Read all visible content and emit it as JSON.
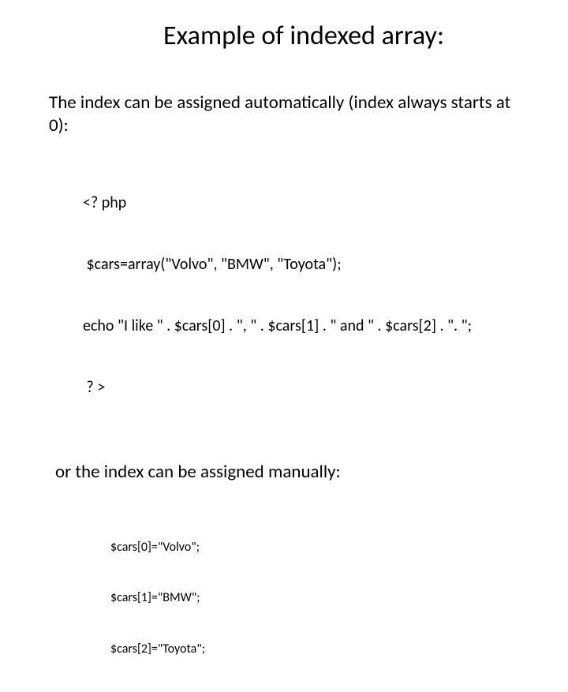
{
  "slide": {
    "title": "Example of indexed array:",
    "intro_text": "The index can be assigned automatically (index always starts at 0):",
    "code_line1": "<? php",
    "code_line2": " $cars=array(\"Volvo\", \"BMW\", \"Toyota\");",
    "code_line3": "echo \"I like \" . $cars[0] . \", \" . $cars[1] . \" and \" . $cars[2] . \". \";",
    "code_line4": " ? >",
    "or_text": "or the index can be assigned manually:",
    "manual_line1": "$cars[0]=\"Volvo\";",
    "manual_line2": "$cars[1]=\"BMW\";",
    "manual_line3": "$cars[2]=\"Toyota\";"
  }
}
